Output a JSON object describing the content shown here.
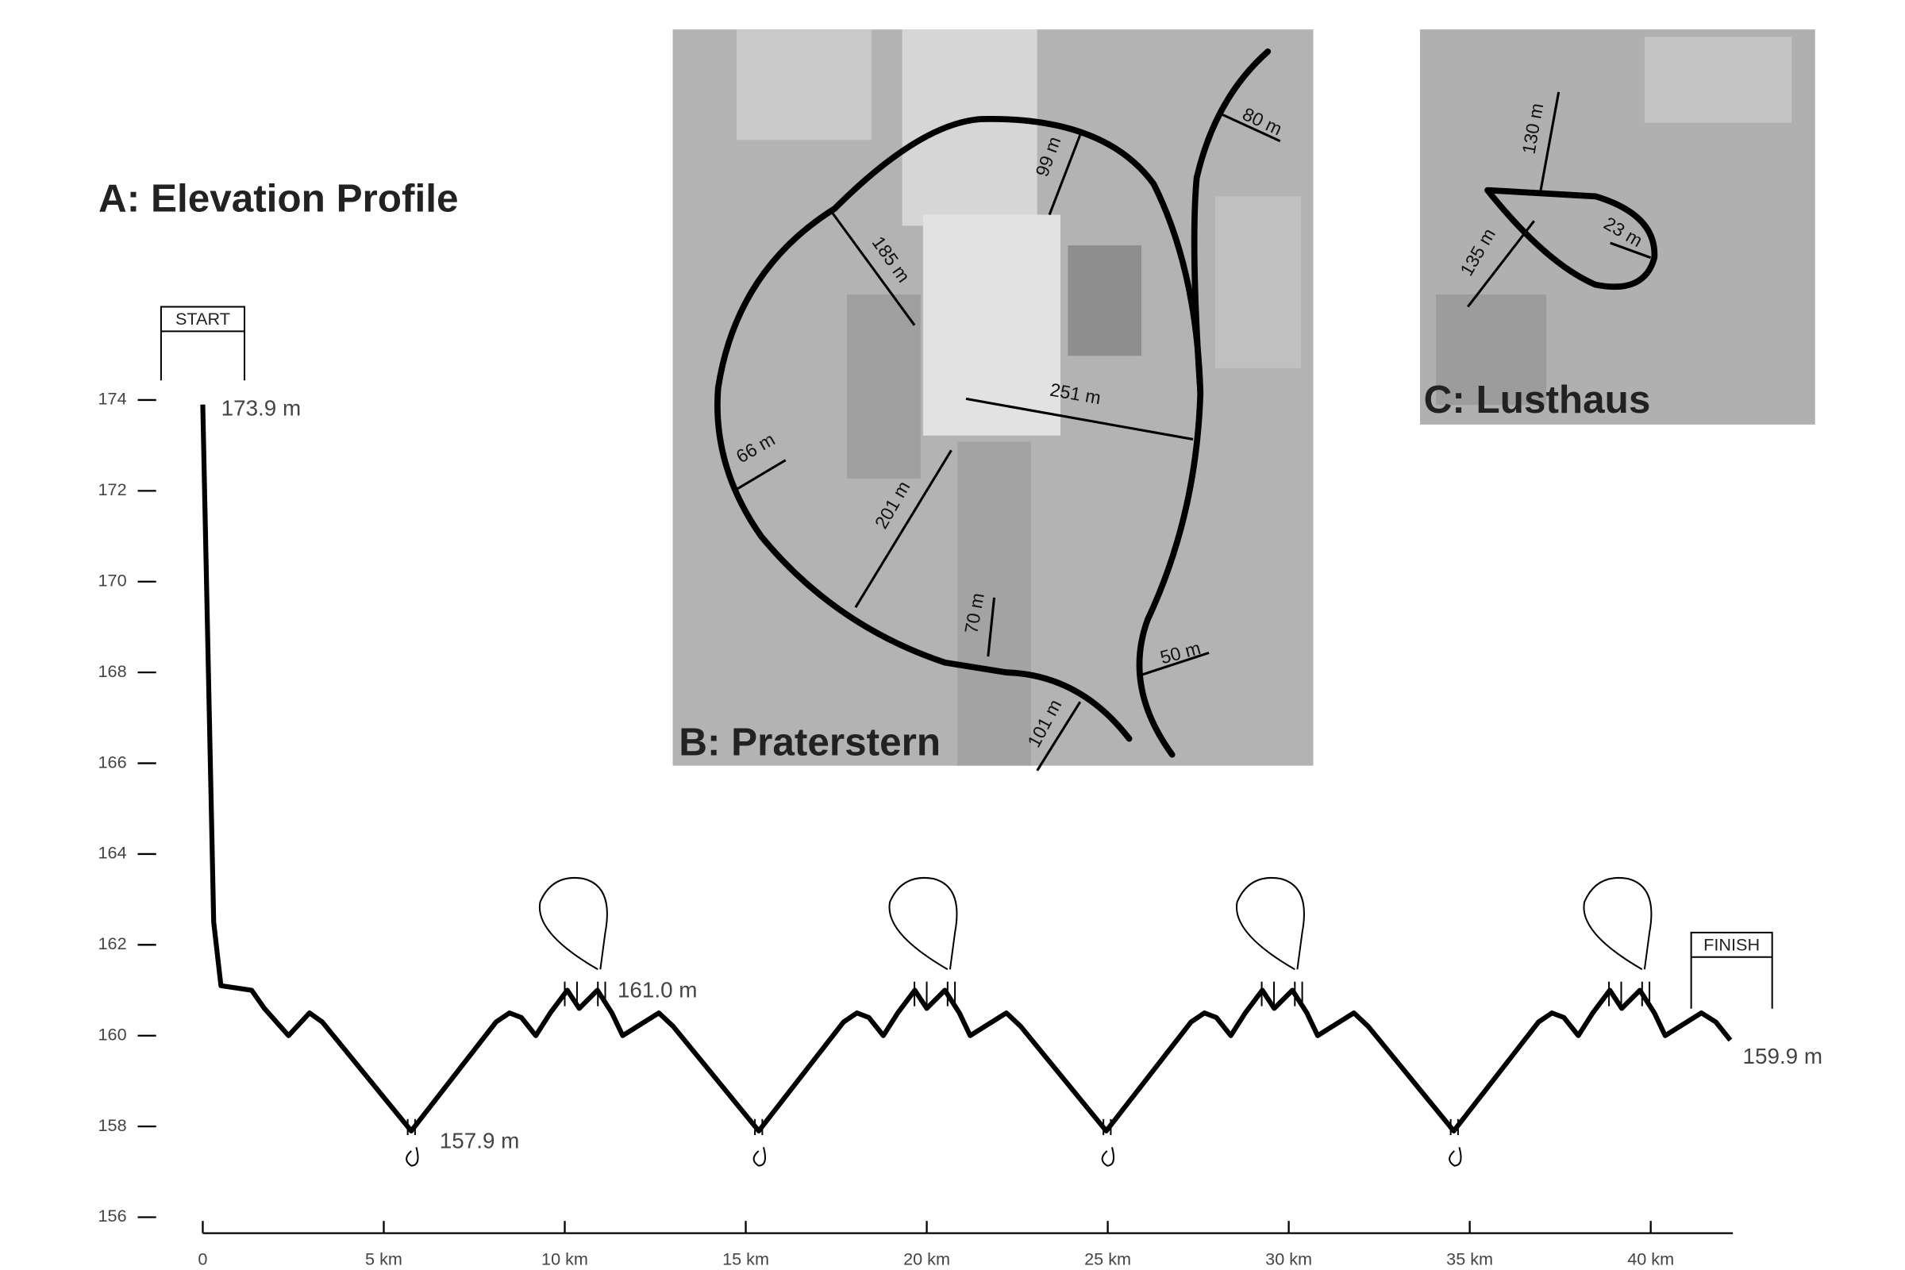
{
  "chart_data": {
    "type": "line",
    "title": "A: Elevation Profile",
    "color": "#000000",
    "x": [
      0,
      0.3,
      0.5,
      1.35,
      1.7,
      2.37,
      2.95,
      3.3,
      5.76,
      8.1,
      8.47,
      8.8,
      9.2,
      9.6,
      10.07,
      10.4,
      10.9,
      11.3,
      11.6,
      12.0,
      12.6,
      13.0,
      15.36,
      17.7,
      18.07,
      18.4,
      18.8,
      19.2,
      19.67,
      20.0,
      20.5,
      20.9,
      21.2,
      21.6,
      22.2,
      22.6,
      24.96,
      27.3,
      27.67,
      28.0,
      28.4,
      28.8,
      29.27,
      29.6,
      30.1,
      30.5,
      30.8,
      31.2,
      31.8,
      32.2,
      34.56,
      36.9,
      37.27,
      37.6,
      38.0,
      38.4,
      38.87,
      39.2,
      39.7,
      40.1,
      40.4,
      40.8,
      41.4,
      41.8,
      42.2
    ],
    "values": [
      173.9,
      162.5,
      161.1,
      161.0,
      160.6,
      160.0,
      160.5,
      160.3,
      157.9,
      160.3,
      160.5,
      160.4,
      160.0,
      160.5,
      161.0,
      160.6,
      161.0,
      160.5,
      160.0,
      160.2,
      160.5,
      160.2,
      157.9,
      160.3,
      160.5,
      160.4,
      160.0,
      160.5,
      161.0,
      160.6,
      161.0,
      160.5,
      160.0,
      160.2,
      160.5,
      160.2,
      157.9,
      160.3,
      160.5,
      160.4,
      160.0,
      160.5,
      161.0,
      160.6,
      161.0,
      160.5,
      160.0,
      160.2,
      160.5,
      160.2,
      157.9,
      160.3,
      160.5,
      160.4,
      160.0,
      160.5,
      161.0,
      160.6,
      161.0,
      160.5,
      160.0,
      160.2,
      160.5,
      160.3,
      159.9
    ],
    "xlim": [
      0,
      42.27
    ],
    "ylim": [
      156,
      174
    ],
    "xticks": [
      0,
      {
        "value": 5,
        "label": "5 km"
      },
      {
        "value": 10,
        "label": "10 km"
      },
      {
        "value": 15,
        "label": "15 km"
      },
      {
        "value": 20,
        "label": "20 km"
      },
      {
        "value": 25,
        "label": "25 km"
      },
      {
        "value": 30,
        "label": "30 km"
      },
      {
        "value": 35,
        "label": "35 km"
      },
      {
        "value": 40,
        "label": "40 km"
      }
    ],
    "yticks": [
      156,
      158,
      160,
      162,
      164,
      166,
      168,
      170,
      172,
      174
    ],
    "annotations": [
      "START",
      "FINISH",
      "173.9 m",
      "161.0 m",
      "157.9 m",
      "159.9 m"
    ]
  },
  "maps": [
    {
      "title": "B: Praterstern",
      "distances": [
        "99 m",
        "185 m",
        "251 m",
        "66 m",
        "201 m",
        "70 m",
        "101 m",
        "50 m",
        "80 m"
      ]
    },
    {
      "title": "C: Lusthaus",
      "distances": [
        "130 m",
        "135 m",
        "23 m"
      ]
    }
  ]
}
